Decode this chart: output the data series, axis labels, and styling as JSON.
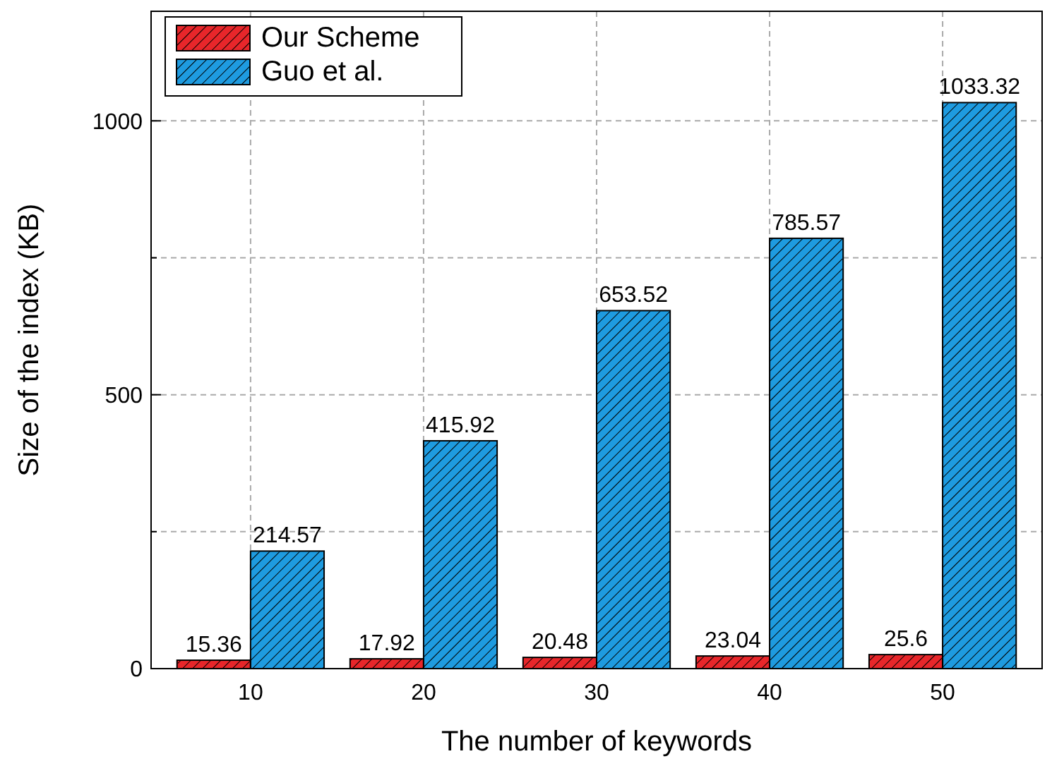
{
  "chart_data": {
    "type": "bar",
    "xlabel": "The number of keywords",
    "ylabel": "Size of the index (KB)",
    "categories": [
      "10",
      "20",
      "30",
      "40",
      "50"
    ],
    "series": [
      {
        "name": "Our Scheme",
        "color": "#e8262a",
        "values": [
          15.36,
          17.92,
          20.48,
          23.04,
          25.6
        ]
      },
      {
        "name": "Guo et al.",
        "color": "#1e9be0",
        "values": [
          214.57,
          415.92,
          653.52,
          785.57,
          1033.32
        ]
      }
    ],
    "ylim": [
      0,
      1200
    ],
    "yticks": [
      0,
      {
        "value": 250,
        "label": null
      },
      500,
      {
        "value": 750,
        "label": null
      },
      1000
    ],
    "grid": true,
    "legend": "top left",
    "data_labels": true
  }
}
